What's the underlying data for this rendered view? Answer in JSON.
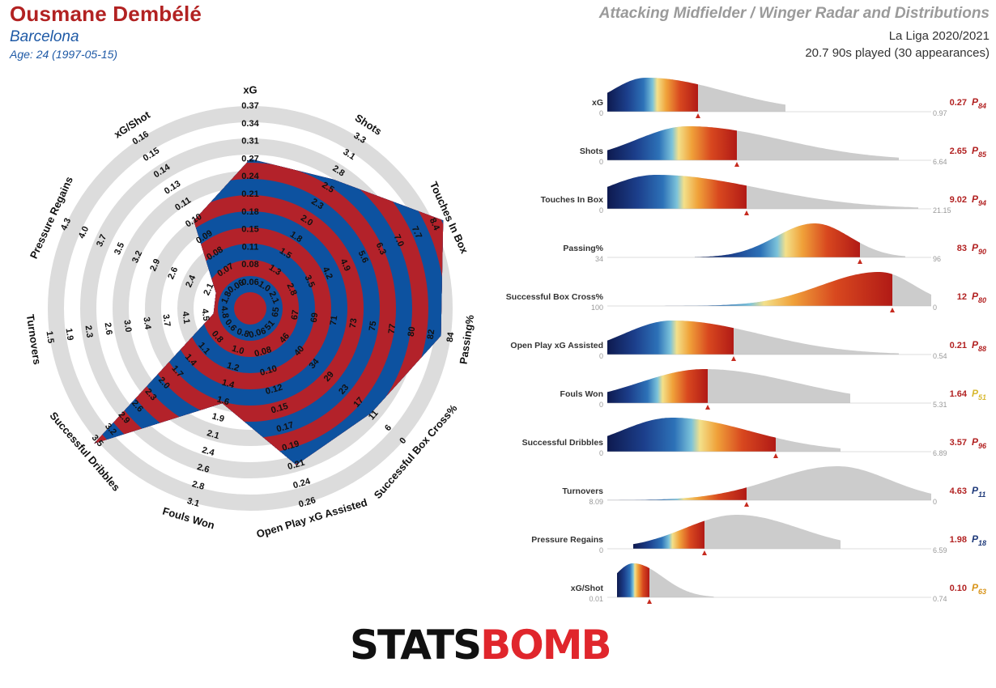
{
  "header": {
    "player": "Ousmane Dembélé",
    "team": "Barcelona",
    "age": "Age: 24 (1997-05-15)",
    "title": "Attacking Midfielder / Winger Radar and Distributions",
    "competition": "La Liga 2020/2021",
    "played": "20.7 90s played (30 appearances)"
  },
  "colors": {
    "player_red": "#b22222",
    "team_blue": "#1f5aa6",
    "radar_blue": "#0d52a0",
    "radar_red": "#b3222a",
    "ring_grey": "#dcdcdc",
    "dist_grey": "#cccccc"
  },
  "logo": {
    "part1": "STATS",
    "part2": "BOMB"
  },
  "chart_data": [
    {
      "type": "radar",
      "axes": [
        {
          "name": "xG",
          "ticks": [
            "0.06",
            "0.08",
            "0.11",
            "0.15",
            "0.18",
            "0.21",
            "0.24",
            "0.27",
            "0.31",
            "0.34",
            "0.37"
          ],
          "value": 0.27
        },
        {
          "name": "Shots",
          "ticks": [
            "1.0",
            "1.3",
            "1.5",
            "1.8",
            "2.0",
            "2.3",
            "2.5",
            "2.8",
            "3.1",
            "3.3"
          ],
          "value": 2.65
        },
        {
          "name": "Touches In Box",
          "ticks": [
            "2.1",
            "2.8",
            "3.5",
            "4.2",
            "4.9",
            "5.6",
            "6.3",
            "7.0",
            "7.7",
            "8.4"
          ],
          "value": 9.02
        },
        {
          "name": "Passing%",
          "ticks": [
            "65",
            "67",
            "69",
            "71",
            "73",
            "75",
            "77",
            "80",
            "82",
            "84"
          ],
          "value": 83
        },
        {
          "name": "Successful Box Cross%",
          "ticks": [
            "51",
            "46",
            "40",
            "34",
            "29",
            "23",
            "17",
            "11",
            "6",
            "0"
          ],
          "value": 12
        },
        {
          "name": "Open Play xG Assisted",
          "ticks": [
            "0.06",
            "0.08",
            "0.10",
            "0.12",
            "0.15",
            "0.17",
            "0.19",
            "0.21",
            "0.24",
            "0.26"
          ],
          "value": 0.21
        },
        {
          "name": "Fouls Won",
          "ticks": [
            "0.8",
            "1.0",
            "1.2",
            "1.4",
            "1.6",
            "1.9",
            "2.1",
            "2.4",
            "2.6",
            "2.8",
            "3.1"
          ],
          "value": 1.64
        },
        {
          "name": "Successful Dribbles",
          "ticks": [
            "0.6",
            "0.8",
            "1.1",
            "1.4",
            "1.7",
            "2.0",
            "2.3",
            "2.6",
            "2.9",
            "3.2",
            "3.5"
          ],
          "value": 3.57
        },
        {
          "name": "Turnovers",
          "ticks": [
            "4.8",
            "4.5",
            "4.1",
            "3.7",
            "3.4",
            "3.0",
            "2.6",
            "2.3",
            "1.9",
            "1.5"
          ],
          "value": 4.63
        },
        {
          "name": "Pressure Regains",
          "ticks": [
            "1.8",
            "2.1",
            "2.4",
            "2.6",
            "2.9",
            "3.2",
            "3.5",
            "3.7",
            "4.0",
            "4.3"
          ],
          "value": 1.98
        },
        {
          "name": "xG/Shot",
          "ticks": [
            "0.06",
            "0.07",
            "0.08",
            "0.09",
            "0.10",
            "0.11",
            "0.13",
            "0.14",
            "0.15",
            "0.16"
          ],
          "value": 0.1
        }
      ]
    },
    {
      "type": "area",
      "distributions": [
        {
          "name": "xG",
          "min": "0",
          "max": "0.97",
          "value": "0.27",
          "percentile": "84",
          "pcolor": "#b22222",
          "marker": 0.28,
          "peak": 0.12,
          "x0": 0.0,
          "x1": 0.55,
          "w": 0.11,
          "skew": 2.2
        },
        {
          "name": "Shots",
          "min": "0",
          "max": "6.64",
          "value": "2.65",
          "percentile": "85",
          "pcolor": "#b22222",
          "marker": 0.4,
          "peak": 0.25,
          "x0": 0.0,
          "x1": 0.9,
          "w": 0.16,
          "skew": 1.8
        },
        {
          "name": "Touches In Box",
          "min": "0",
          "max": "21.15",
          "value": "9.02",
          "percentile": "94",
          "pcolor": "#b22222",
          "marker": 0.43,
          "peak": 0.15,
          "x0": 0.0,
          "x1": 0.96,
          "w": 0.16,
          "skew": 2.0
        },
        {
          "name": "Passing%",
          "min": "34",
          "max": "96",
          "value": "83",
          "percentile": "90",
          "pcolor": "#b22222",
          "marker": 0.78,
          "peak": 0.64,
          "x0": 0.27,
          "x1": 0.92,
          "w": 0.12,
          "skew": 0.9
        },
        {
          "name": "Successful Box Cross%",
          "min": "100",
          "max": "0",
          "value": "12",
          "percentile": "80",
          "pcolor": "#b22222",
          "marker": 0.88,
          "peak": 0.84,
          "x0": 0.0,
          "x1": 1.0,
          "w": 0.18,
          "skew": 0.6
        },
        {
          "name": "Open Play xG Assisted",
          "min": "0",
          "max": "0.54",
          "value": "0.21",
          "percentile": "88",
          "pcolor": "#b22222",
          "marker": 0.39,
          "peak": 0.2,
          "x0": 0.0,
          "x1": 0.9,
          "w": 0.15,
          "skew": 1.8
        },
        {
          "name": "Fouls Won",
          "min": "0",
          "max": "5.31",
          "value": "1.64",
          "percentile": "51",
          "pcolor": "#d8b830",
          "marker": 0.31,
          "peak": 0.3,
          "x0": 0.0,
          "x1": 0.75,
          "w": 0.2,
          "skew": 1.4
        },
        {
          "name": "Successful Dribbles",
          "min": "0",
          "max": "6.89",
          "value": "3.57",
          "percentile": "96",
          "pcolor": "#b22222",
          "marker": 0.52,
          "peak": 0.2,
          "x0": 0.0,
          "x1": 0.72,
          "w": 0.16,
          "skew": 1.5
        },
        {
          "name": "Turnovers",
          "min": "8.09",
          "max": "0",
          "value": "4.63",
          "percentile": "11",
          "pcolor": "#1f3a7a",
          "marker": 0.43,
          "peak": 0.71,
          "x0": 0.0,
          "x1": 1.0,
          "w": 0.2,
          "skew": 0.8
        },
        {
          "name": "Pressure Regains",
          "min": "0",
          "max": "6.59",
          "value": "1.98",
          "percentile": "18",
          "pcolor": "#1f3a7a",
          "marker": 0.3,
          "peak": 0.4,
          "x0": 0.08,
          "x1": 0.72,
          "w": 0.16,
          "skew": 1.2
        },
        {
          "name": "xG/Shot",
          "min": "0.01",
          "max": "0.74",
          "value": "0.10",
          "percentile": "63",
          "pcolor": "#d8941a",
          "marker": 0.13,
          "peak": 0.08,
          "x0": 0.03,
          "x1": 0.33,
          "w": 0.06,
          "skew": 1.5
        }
      ]
    }
  ]
}
